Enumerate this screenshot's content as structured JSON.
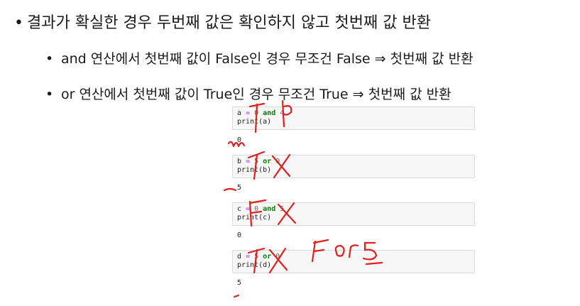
{
  "bullets": {
    "level1": "결과가 확실한 경우 두번째 값은 확인하지 않고 첫번째 값 반환",
    "level2": [
      "and 연산에서 첫번째 값이 False인 경우 무조건 False ⇒ 첫번째 값 반환",
      "or 연산에서 첫번째 값이 True인 경우 무조건 True ⇒ 첫번째 값 반환"
    ]
  },
  "cells": [
    {
      "var": "a",
      "eq": "=",
      "left": "0",
      "op": "and",
      "right": "4",
      "print": "print(a)",
      "output": "0"
    },
    {
      "var": "b",
      "eq": "=",
      "left": "5",
      "op": "or",
      "right": "0",
      "print": "print(b)",
      "output": "5"
    },
    {
      "var": "c",
      "eq": "=",
      "left": "0",
      "op": "and",
      "right": "5",
      "print": "print(c)",
      "output": "0"
    },
    {
      "var": "d",
      "eq": "=",
      "left": "5",
      "op": "or",
      "right": "0",
      "print": "print(d)",
      "output": "5"
    }
  ],
  "annotations": {
    "handwriting_note": "F or 5",
    "color": "#e0201f"
  }
}
